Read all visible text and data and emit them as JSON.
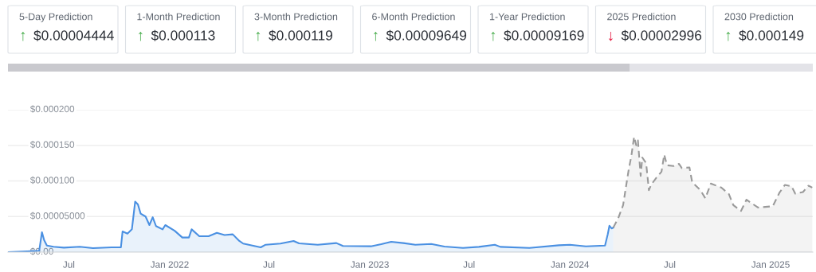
{
  "chart_data": [
    {
      "type": "other",
      "annotations": [
        "5-Day Prediction",
        "↑ $0.00004444",
        "1-Month Prediction",
        "↑ $0.000113",
        "3-Month Prediction",
        "↑ $0.000119",
        "6-Month Prediction",
        "↑ $0.00009649",
        "1-Year Prediction",
        "↑ $0.00009169",
        "2025 Prediction",
        "↓ $0.00002996",
        "2030 Prediction",
        "↑ $0.000149"
      ],
      "colors": [
        "#4caf50",
        "#4caf50",
        "#4caf50",
        "#4caf50",
        "#4caf50",
        "#e5173f",
        "#4caf50"
      ]
    },
    {
      "type": "area",
      "xlim": [
        "2021-03-12",
        "2025-03-19"
      ],
      "ylim": [
        0,
        0.0002
      ],
      "xticks": [
        {
          "value": "2021-07-01",
          "label": "Jul"
        },
        {
          "value": "2022-01-01",
          "label": "Jan 2022"
        },
        {
          "value": "2022-07-01",
          "label": "Jul"
        },
        {
          "value": "2023-01-01",
          "label": "Jan 2023"
        },
        {
          "value": "2023-07-01",
          "label": "Jul"
        },
        {
          "value": "2024-01-01",
          "label": "Jan 2024"
        },
        {
          "value": "2024-07-01",
          "label": "Jul"
        },
        {
          "value": "2025-01-01",
          "label": "Jan 2025"
        }
      ],
      "yticks": [
        {
          "value": 0,
          "label": "$0.00"
        },
        {
          "value": 5e-05,
          "label": "$0.00005000"
        },
        {
          "value": 0.0001,
          "label": "$0.000100"
        },
        {
          "value": 0.00015,
          "label": "$0.000150"
        },
        {
          "value": 0.0002,
          "label": "$0.000200"
        }
      ],
      "grid": "y",
      "legend": false,
      "marker": "none",
      "series": [
        {
          "color": "#4a90e2",
          "line_style": "solid",
          "x": [
            "2021-03-12",
            "2021-04-16",
            "2021-05-08",
            "2021-05-13",
            "2021-05-17",
            "2021-05-22",
            "2021-06-03",
            "2021-06-22",
            "2021-07-21",
            "2021-08-14",
            "2021-09-17",
            "2021-10-04",
            "2021-10-07",
            "2021-10-16",
            "2021-10-24",
            "2021-10-30",
            "2021-11-04",
            "2021-11-09",
            "2021-11-18",
            "2021-11-25",
            "2021-12-01",
            "2021-12-07",
            "2021-12-19",
            "2021-12-24",
            "2022-01-10",
            "2022-01-24",
            "2022-02-05",
            "2022-02-10",
            "2022-02-24",
            "2022-03-13",
            "2022-03-28",
            "2022-04-11",
            "2022-04-26",
            "2022-05-08",
            "2022-05-15",
            "2022-06-16",
            "2022-06-25",
            "2022-07-22",
            "2022-08-15",
            "2022-08-25",
            "2022-09-28",
            "2022-11-01",
            "2022-11-13",
            "2023-01-03",
            "2023-01-22",
            "2023-02-09",
            "2023-03-03",
            "2023-03-25",
            "2023-04-23",
            "2023-05-17",
            "2023-06-20",
            "2023-07-19",
            "2023-08-17",
            "2023-08-27",
            "2023-10-19",
            "2023-12-12",
            "2024-01-01",
            "2024-01-30",
            "2024-03-05",
            "2024-03-10",
            "2024-03-13",
            "2024-03-17",
            "2024-03-20"
          ],
          "values": [
            0,
            1e-06,
            2e-06,
            2.8e-05,
            1.68e-05,
            9.3e-06,
            7.5e-06,
            6.3e-06,
            7.5e-06,
            5.6e-06,
            6.7e-06,
            6.7e-06,
            2.9e-05,
            2.6e-05,
            3.2e-05,
            7.1e-05,
            6.7e-05,
            5.4e-05,
            5e-05,
            3.8e-05,
            4.9e-05,
            3.66e-05,
            3.2e-05,
            3.8e-05,
            3e-05,
            2.05e-05,
            2.05e-05,
            3.2e-05,
            2.24e-05,
            2.24e-05,
            2.7e-05,
            2.4e-05,
            2.5e-05,
            1.57e-05,
            1.2e-05,
            6.7e-06,
            1.04e-05,
            1.2e-05,
            1.57e-05,
            1.23e-05,
            1.04e-05,
            1.27e-05,
            8.6e-06,
            8.2e-06,
            1.12e-05,
            1.45e-05,
            1.27e-05,
            1.04e-05,
            1.15e-05,
            7.8e-06,
            5.9e-06,
            7.4e-06,
            1.04e-05,
            7.4e-06,
            5.9e-06,
            9.6e-06,
            1.04e-05,
            8.1e-06,
            9.3e-06,
            2.52e-05,
            3.7e-05,
            3.33e-05,
            3.44e-05
          ]
        },
        {
          "color": "#9a9a9a",
          "line_style": "dashed",
          "x": [
            "2024-03-20",
            "2024-03-29",
            "2024-04-07",
            "2024-04-12",
            "2024-04-17",
            "2024-04-22",
            "2024-04-27",
            "2024-05-01",
            "2024-05-04",
            "2024-05-09",
            "2024-05-12",
            "2024-05-19",
            "2024-05-24",
            "2024-05-28",
            "2024-06-07",
            "2024-06-16",
            "2024-06-21",
            "2024-06-26",
            "2024-07-08",
            "2024-07-18",
            "2024-07-23",
            "2024-08-06",
            "2024-08-11",
            "2024-08-26",
            "2024-09-04",
            "2024-09-14",
            "2024-10-03",
            "2024-10-17",
            "2024-10-25",
            "2024-11-08",
            "2024-11-18",
            "2024-12-09",
            "2025-01-05",
            "2025-01-17",
            "2025-01-27",
            "2025-02-08",
            "2025-02-15",
            "2025-03-01",
            "2025-03-11",
            "2025-03-18"
          ],
          "values": [
            3.44e-05,
            4.74e-05,
            6.6e-05,
            9.07e-05,
            0.000115,
            0.000135,
            0.000162,
            0.00015,
            0.000157,
            0.000107,
            0.000133,
            0.000125,
            8.7e-05,
            9.44e-05,
            0.000105,
            0.000113,
            0.000137,
            0.000122,
            0.000121,
            0.000124,
            0.000118,
            0.000119,
            9.8e-05,
            8.7e-05,
            7.56e-05,
            9.63e-05,
            9.07e-05,
            8.15e-05,
            6.6e-05,
            5.78e-05,
            7.37e-05,
            6.26e-05,
            6.45e-05,
            8.33e-05,
            9.44e-05,
            9.26e-05,
            8.22e-05,
            8.44e-05,
            9.33e-05,
            9.07e-05
          ]
        }
      ]
    }
  ]
}
